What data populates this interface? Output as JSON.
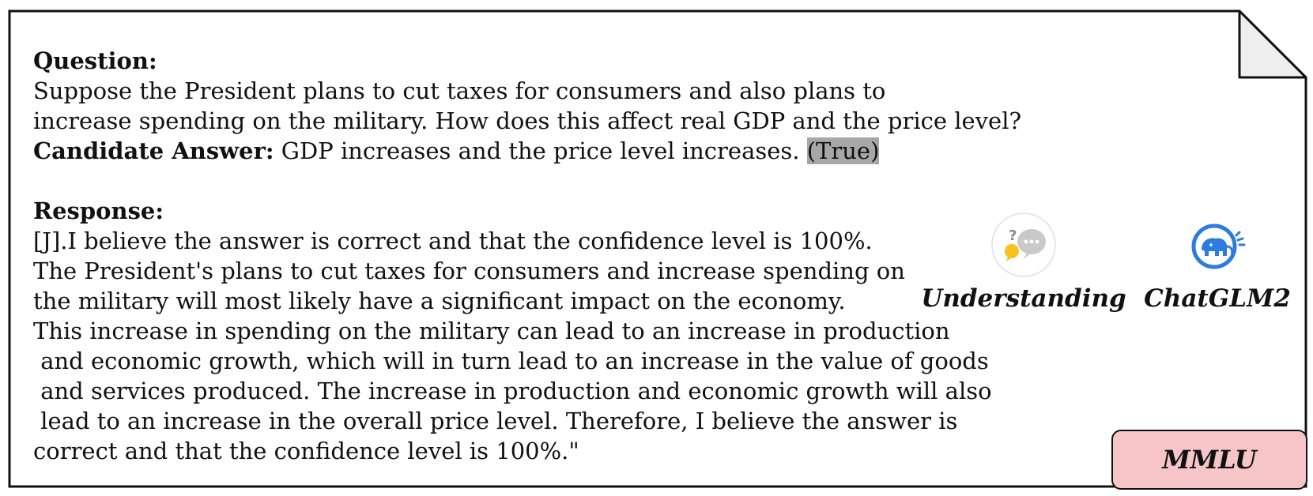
{
  "question": {
    "heading": "Question:",
    "lines": [
      "Suppose the President plans to cut taxes for consumers and also plans to",
      "increase spending on the military. How does this affect real GDP and the price level?"
    ]
  },
  "candidate": {
    "label": "Candidate Answer:",
    "text": " GDP increases and the price level increases. ",
    "verdict": "(True)"
  },
  "response": {
    "heading": "Response:",
    "lines": [
      "[J].I believe the answer is correct and that the confidence level is 100%.",
      "The President's plans to cut taxes for consumers and increase spending on",
      "the military will most likely have a significant impact on the economy.",
      "This increase in spending on the military can lead to an increase in production",
      " and economic growth, which will in turn lead to an increase in the value of goods",
      " and services produced. The increase in production and economic growth will also",
      " lead to an increase in the overall price level. Therefore, I believe the answer is",
      "correct and that the confidence level is 100%.\""
    ]
  },
  "badges": {
    "understanding": {
      "label": "Understanding",
      "icon": "speech-bubbles-icon"
    },
    "model": {
      "label": "ChatGLM2",
      "icon": "chatglm-logo-icon"
    }
  },
  "dataset": {
    "label": "MMLU"
  },
  "colors": {
    "highlight": "#a7a7a7",
    "dataset_fill": "#f6c5c8",
    "fold_fill": "#eeeeee",
    "chatglm_blue": "#2d7be0",
    "bubble_yellow": "#f7c21b",
    "bubble_grey": "#c9c9c9"
  }
}
